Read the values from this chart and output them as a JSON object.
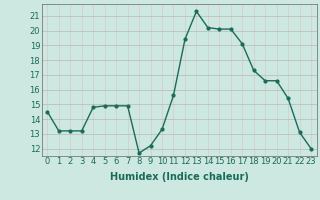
{
  "x": [
    0,
    1,
    2,
    3,
    4,
    5,
    6,
    7,
    8,
    9,
    10,
    11,
    12,
    13,
    14,
    15,
    16,
    17,
    18,
    19,
    20,
    21,
    22,
    23
  ],
  "y": [
    14.5,
    13.2,
    13.2,
    13.2,
    14.8,
    14.9,
    14.9,
    14.9,
    11.7,
    12.2,
    13.3,
    15.6,
    19.4,
    21.3,
    20.2,
    20.1,
    20.1,
    19.1,
    17.3,
    16.6,
    16.6,
    15.4,
    13.1,
    12.0
  ],
  "line_color": "#1a6b5a",
  "marker": "o",
  "markersize": 2,
  "linewidth": 1.0,
  "xlabel": "Humidex (Indice chaleur)",
  "ylabel_ticks": [
    12,
    13,
    14,
    15,
    16,
    17,
    18,
    19,
    20,
    21
  ],
  "ylim": [
    11.5,
    21.8
  ],
  "xlim": [
    -0.5,
    23.5
  ],
  "bg_color": "#cce8e0",
  "grid_color_major": "#b8b8b8",
  "grid_color_minor": "#d8c8c8",
  "tick_fontsize": 6,
  "xlabel_fontsize": 7
}
